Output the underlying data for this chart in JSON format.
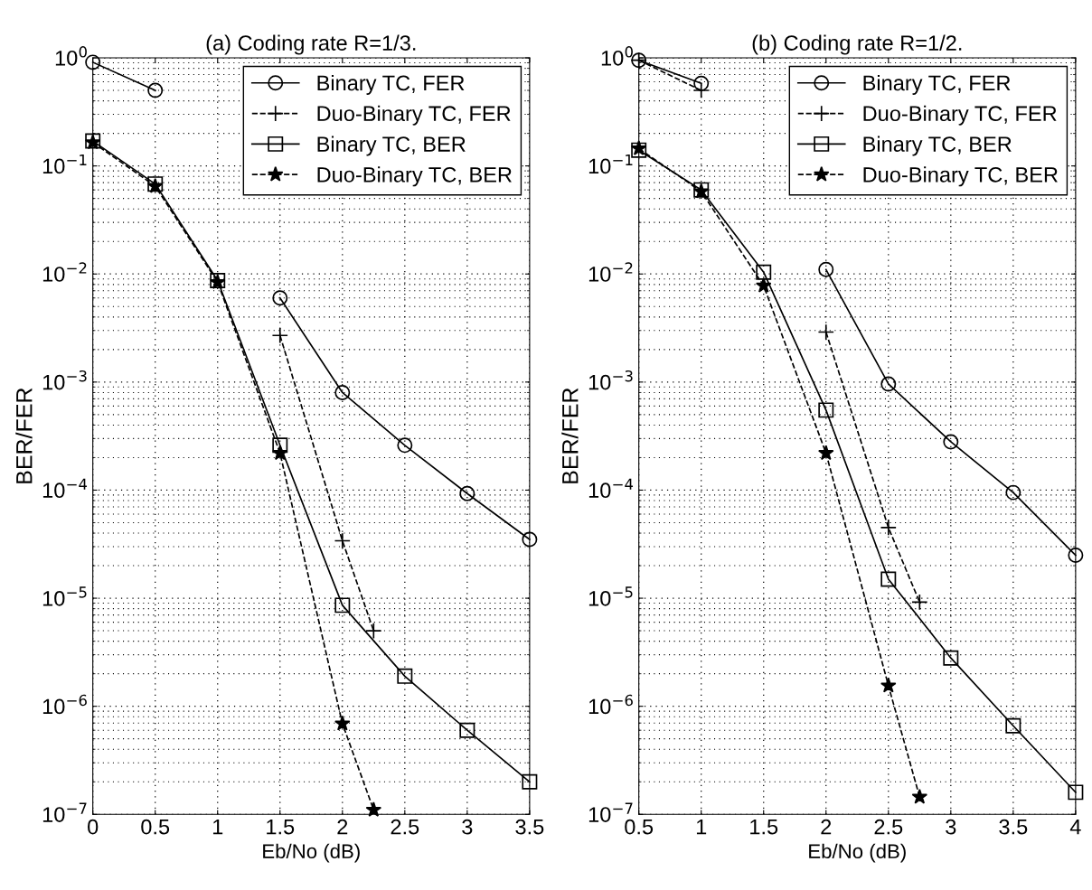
{
  "chart_data": [
    {
      "type": "line",
      "title": "(a) Coding rate R=1/3.",
      "xlabel": "Eb/No (dB)",
      "ylabel": "BER/FER",
      "log": "y",
      "grid": true,
      "legend": "top right",
      "xlim": [
        0,
        3.5
      ],
      "xticks": [
        0,
        0.5,
        1,
        1.5,
        2,
        2.5,
        3,
        3.5
      ],
      "ylim": [
        1e-07,
        1
      ],
      "yticks": [
        {
          "value": 1e-07,
          "label": "10$^{−7}$"
        },
        {
          "value": 1e-06,
          "label": "10$^{−6}$"
        },
        {
          "value": 1e-05,
          "label": "10$^{−5}$"
        },
        {
          "value": 0.0001,
          "label": "10$^{−4}$"
        },
        {
          "value": 0.001,
          "label": "10$^{−3}$"
        },
        {
          "value": 0.01,
          "label": "10$^{−2}$"
        },
        {
          "value": 0.1,
          "label": "10$^{−1}$"
        },
        {
          "value": 1,
          "label": "10$^{0}$"
        }
      ],
      "series": [
        {
          "name": "Binary TC, FER",
          "color": "#000000",
          "marker": "circle",
          "line_style": "solid",
          "x": [
            0,
            0.5,
            1,
            1.5,
            2,
            2.5,
            3,
            3.5
          ],
          "values": [
            0.91,
            0.5,
            null,
            0.006,
            0.0008,
            0.00026,
            9.3e-05,
            3.5e-05
          ]
        },
        {
          "name": "Duo-Binary TC, FER",
          "color": "#000000",
          "marker": "cross",
          "line_style": "dashed",
          "x": [
            1.5,
            2,
            2.25
          ],
          "values": [
            0.0027,
            3.4e-05,
            5e-06
          ]
        },
        {
          "name": "Binary TC, BER",
          "color": "#000000",
          "marker": "square",
          "line_style": "solid",
          "x": [
            0,
            0.5,
            1,
            1.5,
            2,
            2.5,
            3,
            3.5
          ],
          "values": [
            0.17,
            0.068,
            0.0087,
            0.00026,
            8.6e-06,
            1.9e-06,
            6e-07,
            2e-07
          ]
        },
        {
          "name": "Duo-Binary TC, BER",
          "color": "#000000",
          "marker": "star",
          "line_style": "dashed",
          "x": [
            0,
            0.5,
            1,
            1.5,
            2,
            2.25
          ],
          "values": [
            0.165,
            0.065,
            0.0084,
            0.00022,
            6.9e-07,
            1.1e-07
          ]
        }
      ]
    },
    {
      "type": "line",
      "title": "(b) Coding rate R=1/2.",
      "xlabel": "Eb/No (dB)",
      "ylabel": "BER/FER",
      "log": "y",
      "grid": true,
      "legend": "top right",
      "xlim": [
        0.5,
        4
      ],
      "xticks": [
        0.5,
        1,
        1.5,
        2,
        2.5,
        3,
        3.5,
        4
      ],
      "ylim": [
        1e-07,
        1
      ],
      "yticks": [
        {
          "value": 1e-07,
          "label": "10$^{−7}$"
        },
        {
          "value": 1e-06,
          "label": "10$^{−6}$"
        },
        {
          "value": 1e-05,
          "label": "10$^{−5}$"
        },
        {
          "value": 0.0001,
          "label": "10$^{−4}$"
        },
        {
          "value": 0.001,
          "label": "10$^{−3}$"
        },
        {
          "value": 0.01,
          "label": "10$^{−2}$"
        },
        {
          "value": 0.1,
          "label": "10$^{−1}$"
        },
        {
          "value": 1,
          "label": "10$^{0}$"
        }
      ],
      "series": [
        {
          "name": "Binary TC, FER",
          "color": "#000000",
          "marker": "circle",
          "line_style": "solid",
          "x": [
            0.5,
            1,
            1.5,
            2,
            2.5,
            3,
            3.5,
            4
          ],
          "values": [
            0.95,
            0.58,
            null,
            0.011,
            0.00096,
            0.00028,
            9.5e-05,
            2.5e-05
          ]
        },
        {
          "name": "Duo-Binary TC, FER",
          "color": "#000000",
          "marker": "cross",
          "line_style": "dashed",
          "x": [
            0.5,
            1,
            1.5,
            2,
            2.5,
            2.75
          ],
          "values": [
            0.95,
            0.5,
            null,
            0.0029,
            4.5e-05,
            9.2e-06
          ]
        },
        {
          "name": "Binary TC, BER",
          "color": "#000000",
          "marker": "square",
          "line_style": "solid",
          "x": [
            0.5,
            1,
            1.5,
            2,
            2.5,
            3,
            3.5,
            4
          ],
          "values": [
            0.14,
            0.06,
            0.0104,
            0.00055,
            1.5e-05,
            2.8e-06,
            6.6e-07,
            1.6e-07
          ]
        },
        {
          "name": "Duo-Binary TC, BER",
          "color": "#000000",
          "marker": "star",
          "line_style": "dashed",
          "x": [
            0.5,
            1,
            1.5,
            2,
            2.5,
            2.75
          ],
          "values": [
            0.145,
            0.058,
            0.0078,
            0.00022,
            1.55e-06,
            1.45e-07
          ]
        }
      ]
    }
  ]
}
